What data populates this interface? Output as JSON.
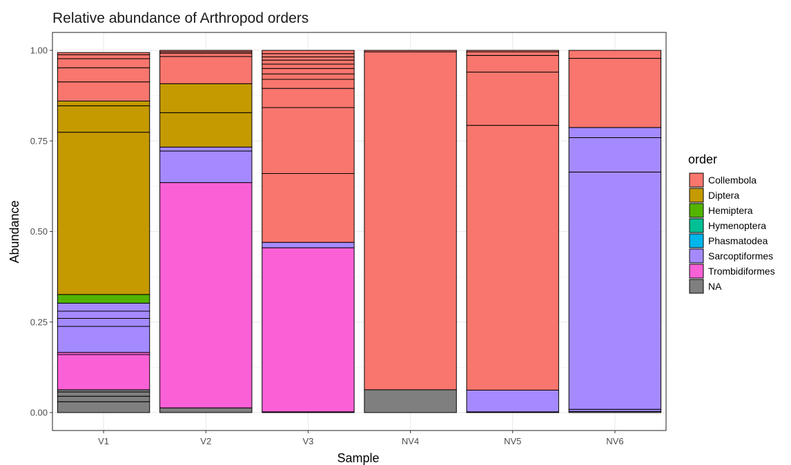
{
  "chart_data": {
    "type": "bar",
    "stacked": true,
    "title": "Relative abundance of Arthropod orders",
    "xlabel": "Sample",
    "ylabel": "Abundance",
    "ylim": [
      0,
      1
    ],
    "yticks": [
      "0.00",
      "0.25",
      "0.50",
      "0.75",
      "1.00"
    ],
    "grid": true,
    "categories": [
      "V1",
      "V2",
      "V3",
      "NV4",
      "NV5",
      "NV6"
    ],
    "legend": {
      "title": "order",
      "position": "right",
      "items": [
        {
          "name": "Collembola",
          "color": "#F8766D"
        },
        {
          "name": "Diptera",
          "color": "#C49A00"
        },
        {
          "name": "Hemiptera",
          "color": "#53B400"
        },
        {
          "name": "Hymenoptera",
          "color": "#00C094"
        },
        {
          "name": "Phasmatodea",
          "color": "#00B6EB"
        },
        {
          "name": "Sarcoptiformes",
          "color": "#A58AFF"
        },
        {
          "name": "Trombidiformes",
          "color": "#FB61D7"
        },
        {
          "name": "NA",
          "color": "#7F7F7F"
        }
      ]
    },
    "segments": {
      "V1": [
        {
          "order": "NA",
          "value": 0.03
        },
        {
          "order": "NA",
          "value": 0.015
        },
        {
          "order": "NA",
          "value": 0.012
        },
        {
          "order": "NA",
          "value": 0.006
        },
        {
          "order": "Trombidiformes",
          "value": 0.097
        },
        {
          "order": "Trombidiformes",
          "value": 0.006
        },
        {
          "order": "Sarcoptiformes",
          "value": 0.072
        },
        {
          "order": "Sarcoptiformes",
          "value": 0.022
        },
        {
          "order": "Sarcoptiformes",
          "value": 0.02
        },
        {
          "order": "Sarcoptiformes",
          "value": 0.022
        },
        {
          "order": "Hemiptera",
          "value": 0.024
        },
        {
          "order": "Diptera",
          "value": 0.448
        },
        {
          "order": "Diptera",
          "value": 0.073
        },
        {
          "order": "Diptera",
          "value": 0.013
        },
        {
          "order": "Collembola",
          "value": 0.053
        },
        {
          "order": "Collembola",
          "value": 0.039
        },
        {
          "order": "Collembola",
          "value": 0.025
        },
        {
          "order": "Collembola",
          "value": 0.011
        },
        {
          "order": "Collembola",
          "value": 0.006
        }
      ],
      "V2": [
        {
          "order": "NA",
          "value": 0.013
        },
        {
          "order": "Trombidiformes",
          "value": 0.622
        },
        {
          "order": "Sarcoptiformes",
          "value": 0.087
        },
        {
          "order": "Sarcoptiformes",
          "value": 0.011
        },
        {
          "order": "Diptera",
          "value": 0.095
        },
        {
          "order": "Diptera",
          "value": 0.08
        },
        {
          "order": "Collembola",
          "value": 0.075
        },
        {
          "order": "Collembola",
          "value": 0.009
        },
        {
          "order": "Collembola",
          "value": 0.004
        },
        {
          "order": "Collembola",
          "value": 0.004
        }
      ],
      "V3": [
        {
          "order": "NA",
          "value": 0.002
        },
        {
          "order": "Trombidiformes",
          "value": 0.453
        },
        {
          "order": "Sarcoptiformes",
          "value": 0.015
        },
        {
          "order": "Collembola",
          "value": 0.19
        },
        {
          "order": "Collembola",
          "value": 0.182
        },
        {
          "order": "Collembola",
          "value": 0.053
        },
        {
          "order": "Collembola",
          "value": 0.025
        },
        {
          "order": "Collembola",
          "value": 0.015
        },
        {
          "order": "Collembola",
          "value": 0.015
        },
        {
          "order": "Collembola",
          "value": 0.012
        },
        {
          "order": "Collembola",
          "value": 0.011
        },
        {
          "order": "Collembola",
          "value": 0.009
        },
        {
          "order": "Collembola",
          "value": 0.009
        },
        {
          "order": "Collembola",
          "value": 0.009
        }
      ],
      "NV4": [
        {
          "order": "NA",
          "value": 0.063
        },
        {
          "order": "Collembola",
          "value": 0.933
        },
        {
          "order": "Collembola",
          "value": 0.004
        }
      ],
      "NV5": [
        {
          "order": "Trombidiformes",
          "value": 0.002
        },
        {
          "order": "Sarcoptiformes",
          "value": 0.06
        },
        {
          "order": "Collembola",
          "value": 0.731
        },
        {
          "order": "Collembola",
          "value": 0.147
        },
        {
          "order": "Collembola",
          "value": 0.046
        },
        {
          "order": "Collembola",
          "value": 0.01
        },
        {
          "order": "Collembola",
          "value": 0.004
        }
      ],
      "NV6": [
        {
          "order": "NA",
          "value": 0.003
        },
        {
          "order": "Sarcoptiformes",
          "value": 0.006
        },
        {
          "order": "Sarcoptiformes",
          "value": 0.655
        },
        {
          "order": "Sarcoptiformes",
          "value": 0.095
        },
        {
          "order": "Sarcoptiformes",
          "value": 0.028
        },
        {
          "order": "Collembola",
          "value": 0.191
        },
        {
          "order": "Collembola",
          "value": 0.022
        }
      ]
    }
  }
}
